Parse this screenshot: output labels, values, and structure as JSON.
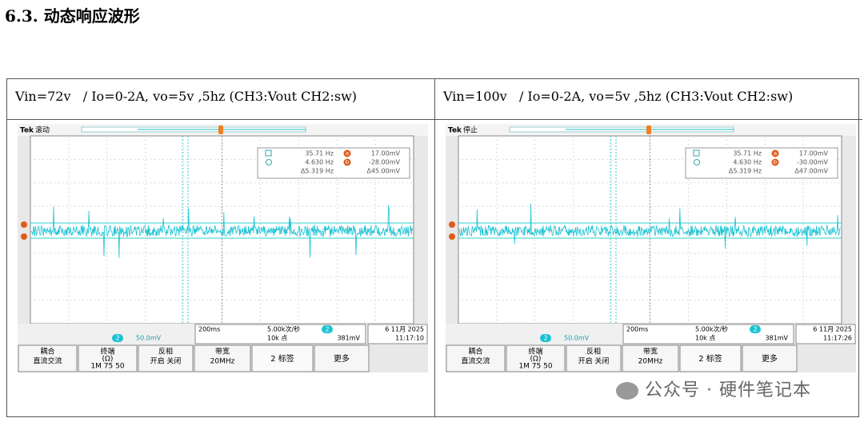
{
  "heading": "6.3. 动态响应波形",
  "panels": [
    {
      "caption": "Vin=72v   / Io=0-2A, vo=5v ,5hz (CH3:Vout CH2:sw)",
      "scope": {
        "brand": "Tek",
        "status": "滚动",
        "readout": [
          [
            "35.71 Hz",
            "a",
            "17.00mV"
          ],
          [
            "4.630 Hz",
            "b",
            "-28.00mV"
          ],
          [
            "Δ5.319 Hz",
            "Δ45.00mV"
          ]
        ],
        "channel": "2",
        "ch_scale": "50.0mV",
        "timebase": "200ms",
        "sample_rate": "5.00k次/秒",
        "points": "10k 点",
        "trigger_level": "381mV",
        "date": "6 11月 2025",
        "time": "11:17:10",
        "buttons": [
          [
            "耦合",
            "直流交流"
          ],
          [
            "终端",
            "(Ω)",
            "1M  75  50"
          ],
          [
            "反相",
            "开启 关闭"
          ],
          [
            "带宽",
            "20MHz"
          ],
          [
            "2 标签"
          ],
          [
            "更多"
          ]
        ]
      }
    },
    {
      "caption": "Vin=100v   / Io=0-2A, vo=5v ,5hz (CH3:Vout CH2:sw)",
      "scope": {
        "brand": "Tek",
        "status": "停止",
        "readout": [
          [
            "35.71 Hz",
            "a",
            "17.00mV"
          ],
          [
            "4.630 Hz",
            "b",
            "-30.00mV"
          ],
          [
            "Δ5.319 Hz",
            "Δ47.00mV"
          ]
        ],
        "channel": "2",
        "ch_scale": "50.0mV",
        "timebase": "200ms",
        "sample_rate": "5.00k次/秒",
        "points": "10k 点",
        "trigger_level": "381mV",
        "date": "6 11月 2025",
        "time": "11:17:26",
        "buttons": [
          [
            "耦合",
            "直流交流"
          ],
          [
            "终端",
            "(Ω)",
            "1M  75  50"
          ],
          [
            "反相",
            "开启 关闭"
          ],
          [
            "带宽",
            "20MHz"
          ],
          [
            "2 标签"
          ],
          [
            "更多"
          ]
        ]
      }
    }
  ],
  "watermark": "公众号 · 硬件笔记本"
}
